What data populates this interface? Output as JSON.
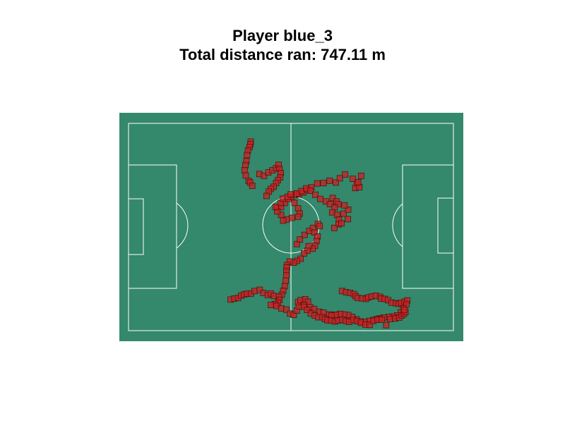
{
  "chart_data": {
    "type": "scatter",
    "title_line1": "Player blue_3",
    "title_line2": "Total distance ran: 747.11 m",
    "xlim": [
      0,
      105
    ],
    "ylim": [
      0,
      68
    ],
    "grid": false,
    "colors": {
      "pitch": "#34886b",
      "line": "#ffffff",
      "marker_fill": "#cc2222",
      "marker_edge": "#551111",
      "path": "#8a3a3a"
    },
    "tracks": [
      {
        "x": [
          39.5,
          39.4,
          39.1,
          38.6,
          38.3,
          38.1,
          37.8,
          37.5,
          37.9,
          38.8,
          39.3,
          40.0
        ],
        "y": [
          62.0,
          61.2,
          60.2,
          59.1,
          57.6,
          55.6,
          54.3,
          52.6,
          50.9,
          49.1,
          48.6,
          47.5
        ]
      },
      {
        "x": [
          42.3,
          43.8,
          45.2,
          46.5,
          47.7,
          48.5,
          48.8,
          49.2,
          49.0,
          48.3,
          47.7,
          46.9,
          46.0,
          45.3,
          44.6
        ],
        "y": [
          51.4,
          50.8,
          51.9,
          52.6,
          53.3,
          54.4,
          53.0,
          51.7,
          50.3,
          49.4,
          48.4,
          47.2,
          46.5,
          45.6,
          44.2
        ]
      },
      {
        "x": [
          48.0,
          49.3,
          50.5,
          51.7,
          52.7,
          53.8,
          55.1,
          56.5,
          57.8,
          59.1,
          61.0,
          63.0,
          65.0,
          67.0,
          68.3,
          70.0,
          72.5,
          73.8,
          73.3,
          74.6,
          74.2,
          75.2
        ],
        "y": [
          40.3,
          40.6,
          41.9,
          43.2,
          43.9,
          44.5,
          44.7,
          45.3,
          46.2,
          47.0,
          48.3,
          48.4,
          49.2,
          48.6,
          50.0,
          51.2,
          49.8,
          48.2,
          46.8,
          47.1,
          48.7,
          50.8
        ]
      },
      {
        "x": [
          53.6,
          54.8,
          55.3,
          54.8,
          52.8,
          51.1,
          50.0,
          49.3,
          48.1,
          47.6,
          49.2,
          49.9,
          51.4,
          52.4,
          54.4,
          55.9,
          57.4,
          58.8,
          60.4,
          62.0,
          63.8,
          65.1,
          66.0,
          67.2,
          67.8,
          66.6,
          65.8,
          67.4,
          68.0,
          67.9,
          66.5,
          68.8,
          70.9,
          69.5,
          71.0,
          69.8
        ],
        "y": [
          41.9,
          40.1,
          38.4,
          37.4,
          37.0,
          36.5,
          36.1,
          38.0,
          39.1,
          40.6,
          41.9,
          43.3,
          43.9,
          44.7,
          45.0,
          45.8,
          46.7,
          45.9,
          44.6,
          43.2,
          42.4,
          41.5,
          43.5,
          42.4,
          41.5,
          40.4,
          38.8,
          38.0,
          36.4,
          34.9,
          33.7,
          35.2,
          36.6,
          38.4,
          39.7,
          41.1
        ]
      },
      {
        "x": [
          54.4,
          55.4,
          56.9,
          58.4,
          59.6,
          61.2,
          61.8,
          60.1,
          61.1,
          60.8,
          60.3,
          59.5,
          58.2,
          57.8,
          56.7,
          55.6,
          54.4,
          53.4,
          52.1,
          51.2,
          51.1,
          51.0,
          51.0,
          50.8,
          50.5,
          50.0,
          49.5
        ],
        "y": [
          28.4,
          29.9,
          31.4,
          32.7,
          33.7,
          35.0,
          34.3,
          32.2,
          30.9,
          29.4,
          27.9,
          26.9,
          27.7,
          26.2,
          25.3,
          23.6,
          22.9,
          22.3,
          22.7,
          21.5,
          20.7,
          19.4,
          18.2,
          16.4,
          14.6,
          13.1,
          11.8
        ]
      },
      {
        "x": [
          33.0,
          34.2,
          35.4,
          36.4,
          37.4,
          38.3,
          39.6,
          40.7,
          42.4,
          43.6,
          45.0,
          46.0,
          47.0,
          48.6,
          48.8,
          48.3,
          47.3,
          46.0,
          47.8,
          49.4,
          51.0,
          52.2,
          53.4,
          54.4,
          55.0,
          54.8,
          55.6,
          57.1,
          58.0,
          56.7,
          58.7,
          60.0,
          61.6,
          63.0,
          64.9,
          66.5
        ],
        "y": [
          10.2,
          10.5,
          10.7,
          11.5,
          11.9,
          12.1,
          12.2,
          13.0,
          13.4,
          12.4,
          11.7,
          12.2,
          11.4,
          11.1,
          10.1,
          9.2,
          8.7,
          8.4,
          8.1,
          7.3,
          6.9,
          5.6,
          5.2,
          6.6,
          8.0,
          9.3,
          10.0,
          10.3,
          9.5,
          8.4,
          7.7,
          7.1,
          6.2,
          5.9,
          5.3,
          5.2
        ]
      },
      {
        "x": [
          69.0,
          70.3,
          71.6,
          72.8,
          73.4,
          74.1,
          75.5,
          76.7,
          77.5,
          78.6,
          79.9,
          81.3,
          81.7,
          82.8,
          83.9,
          85.0,
          86.4,
          87.3,
          88.1,
          89.2,
          90.1,
          89.8,
          88.8,
          88.0,
          86.8,
          85.4,
          84.1,
          82.4,
          81.2,
          80.3,
          79.2,
          77.8,
          76.3,
          75.0,
          73.7,
          72.3,
          71.0,
          69.7,
          68.4,
          67.0,
          65.6
        ],
        "y": [
          13.0,
          12.6,
          12.4,
          12.0,
          11.3,
          10.7,
          10.6,
          10.4,
          10.9,
          11.2,
          11.5,
          11.1,
          10.5,
          10.4,
          10.0,
          9.2,
          9.0,
          8.8,
          9.1,
          9.5,
          9.9,
          8.6,
          7.3,
          6.0,
          5.0,
          4.6,
          4.5,
          4.3,
          4.0,
          3.8,
          3.5,
          3.2,
          2.8,
          3.0,
          3.7,
          4.5,
          5.1,
          5.3,
          5.5,
          5.2,
          5.0
        ]
      },
      {
        "x": [
          56.7,
          57.7,
          58.9,
          60.2,
          61.3,
          62.6,
          63.5,
          64.3,
          65.5,
          66.7,
          67.8,
          69.0,
          70.2,
          71.3,
          72.6,
          73.8,
          75.1,
          76.6,
          77.9,
          79.1,
          80.5,
          81.8,
          83.3,
          84.6,
          86.2,
          87.5,
          88.3,
          89.0,
          89.5,
          89.1
        ],
        "y": [
          7.8,
          6.8,
          5.6,
          5.0,
          4.4,
          4.4,
          3.8,
          3.4,
          3.3,
          3.0,
          3.3,
          3.6,
          3.2,
          2.9,
          3.5,
          3.1,
          2.6,
          2.0,
          1.9,
          3.2,
          3.6,
          3.6,
          1.8,
          3.8,
          4.0,
          4.3,
          5.0,
          5.5,
          6.1,
          6.8
        ]
      }
    ]
  }
}
